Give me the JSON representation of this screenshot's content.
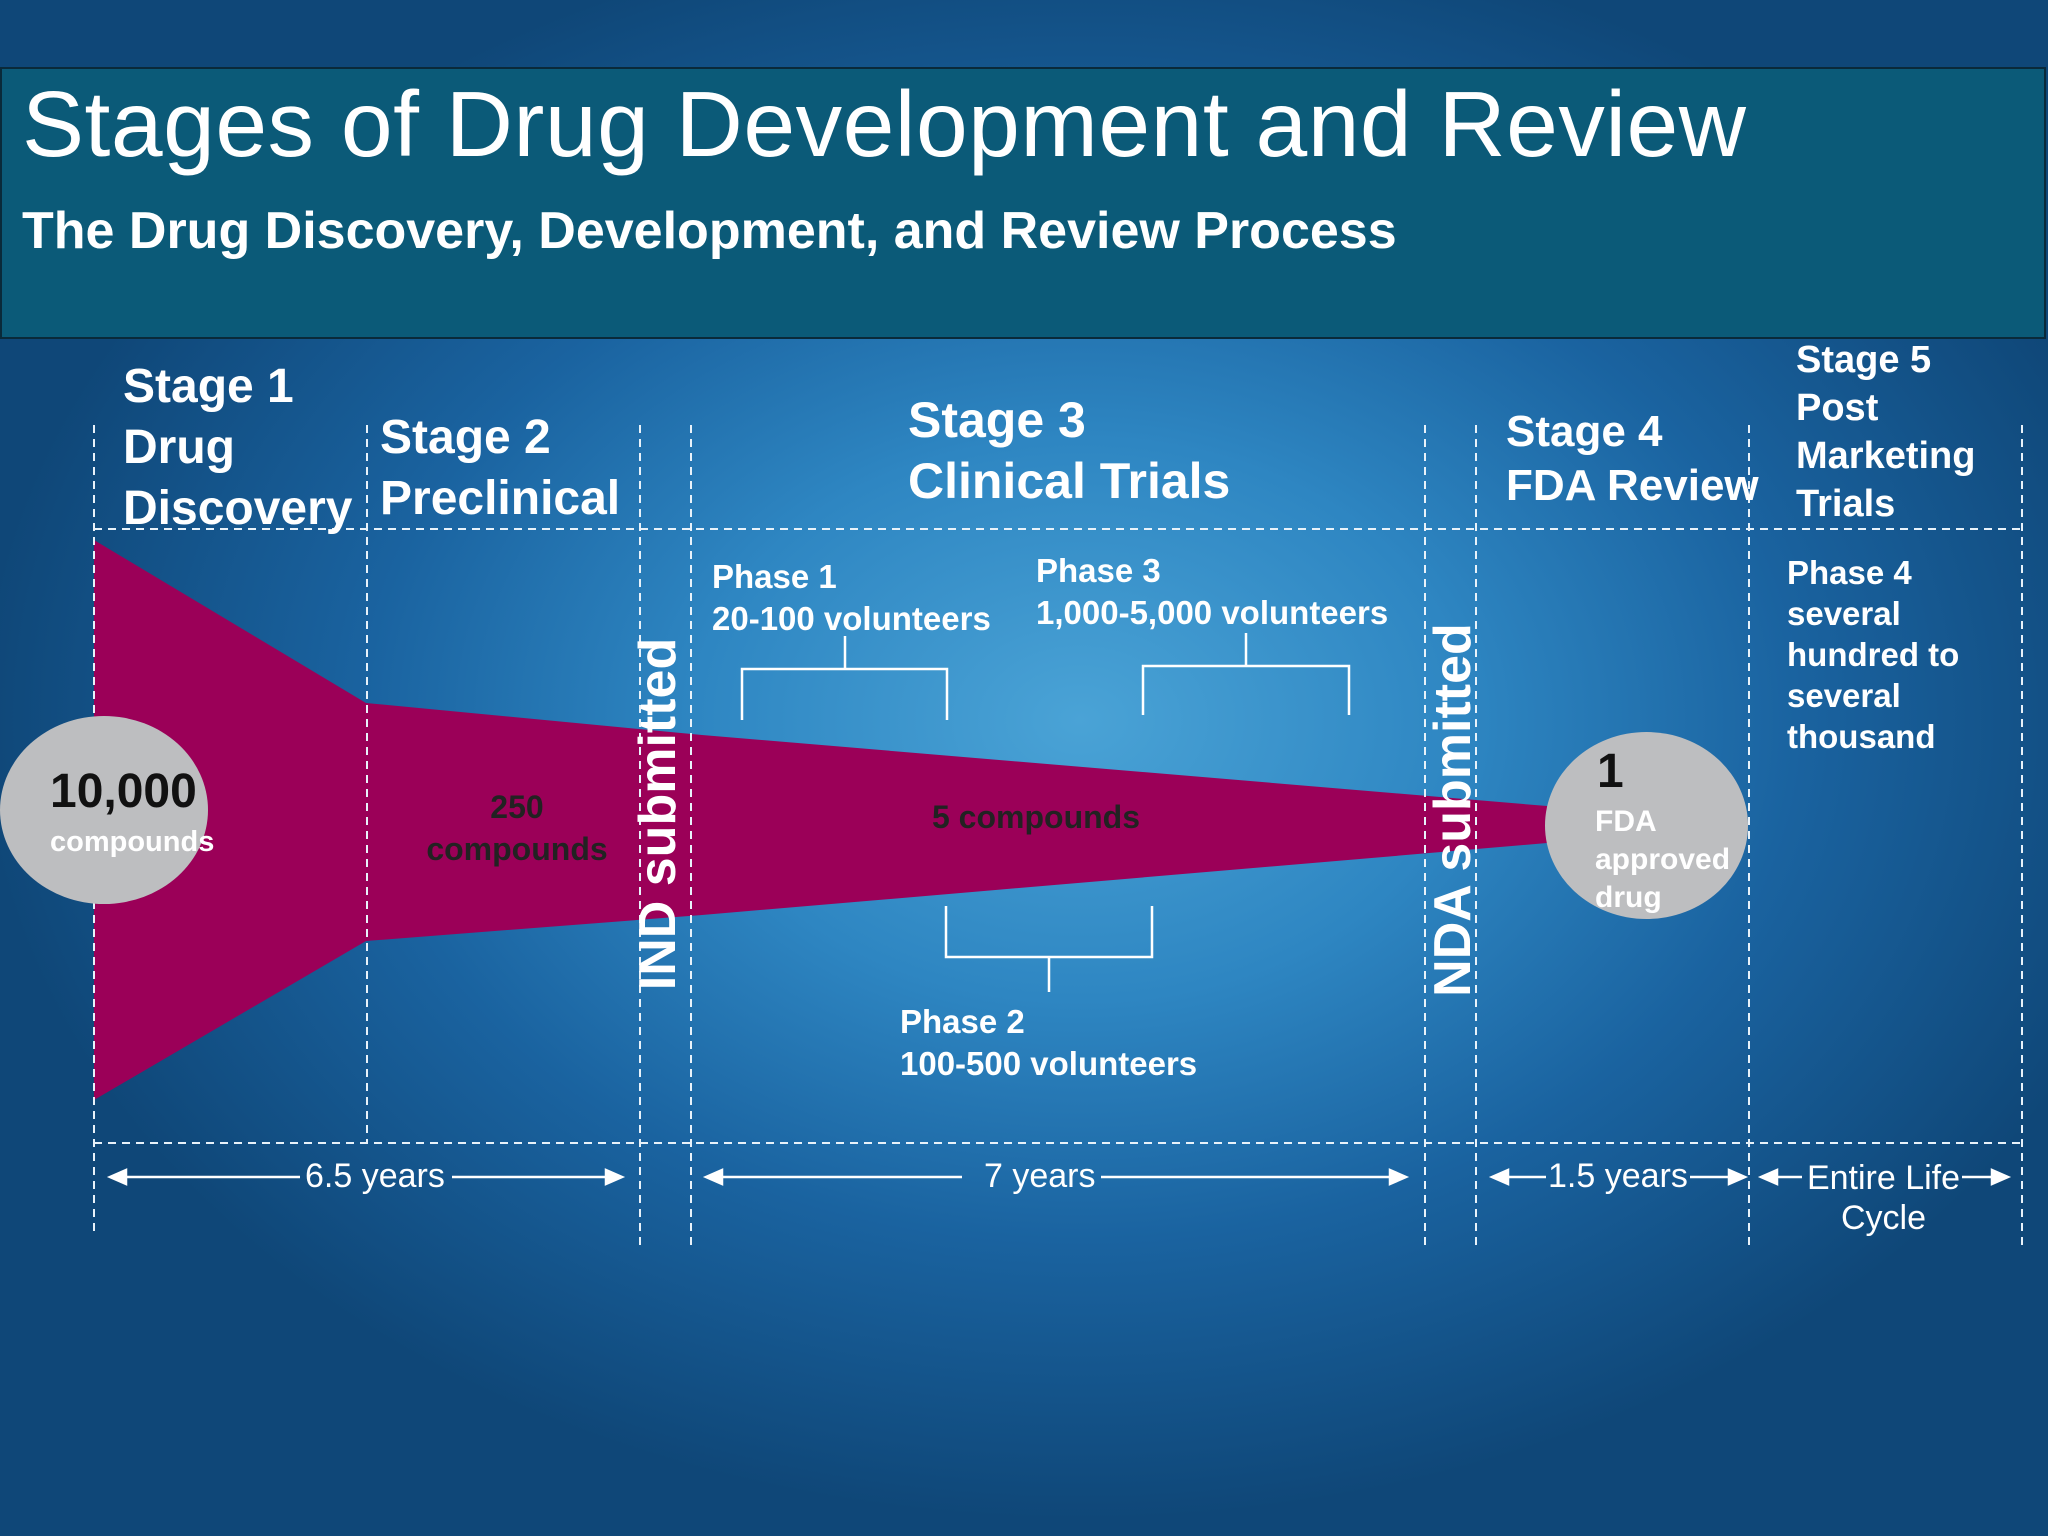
{
  "title": "Stages of Drug Development and Review",
  "subtitle": "The Drug Discovery, Development, and Review Process",
  "stages": {
    "stage1": "Stage 1\nDrug\nDiscovery",
    "stage2": "Stage 2\nPreclinical",
    "stage3": "Stage 3\nClinical Trials",
    "stage4": "Stage 4\nFDA Review",
    "stage5": "Stage 5\nPost\nMarketing\nTrials"
  },
  "phases": {
    "phase1": "Phase 1\n20-100 volunteers",
    "phase2": "Phase 2\n100-500 volunteers",
    "phase3": "Phase 3\n1,000-5,000 volunteers",
    "phase4": "Phase 4\nseveral\nhundred to\nseveral\nthousand"
  },
  "funnel": {
    "start_number": "10,000",
    "start_unit": "compounds",
    "preclinical": "250\ncompounds",
    "clinical": "5 compounds",
    "end_number": "1",
    "end_label": "FDA\napproved\ndrug"
  },
  "milestones": {
    "ind": "IND submitted",
    "nda": "NDA submitted"
  },
  "durations": {
    "discovery_preclinical": "6.5 years",
    "clinical": "7 years",
    "review": "1.5 years",
    "post_marketing": "Entire Life\nCycle"
  },
  "colors": {
    "funnel": "#9b0058",
    "title_bar": "#0b5a78",
    "circle": "#bdbec0"
  }
}
